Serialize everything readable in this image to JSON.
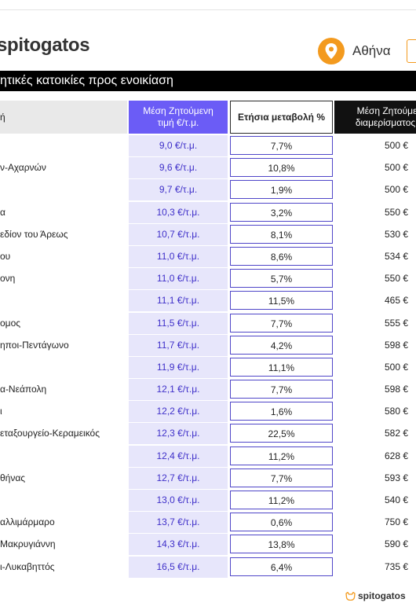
{
  "header": {
    "logo_text": "spitogatos",
    "location": "Αθήνα",
    "banner": "ητικές κατοικίες προς ενοικίαση"
  },
  "table": {
    "col_area": "ή",
    "col_price": "Μέση Ζητούμενη τιμή €/τ.μ.",
    "col_change": "Ετήσια μεταβολή %",
    "col_apartment": "Μέση Ζητούμεν διαμερίσματος «"
  },
  "rows": [
    {
      "area": "",
      "price": "9,0 €/τ.μ.",
      "change": "7,7%",
      "apt": "500 €"
    },
    {
      "area": "ν-Αχαρνών",
      "price": "9,6 €/τ.μ.",
      "change": "10,8%",
      "apt": "500 €"
    },
    {
      "area": "",
      "price": "9,7 €/τ.μ.",
      "change": "1,9%",
      "apt": "500 €"
    },
    {
      "area": "α",
      "price": "10,3 €/τ.μ.",
      "change": "3,2%",
      "apt": "550 €"
    },
    {
      "area": "εδίον του Άρεως",
      "price": "10,7 €/τ.μ.",
      "change": "8,1%",
      "apt": "530 €"
    },
    {
      "area": "ου",
      "price": "11,0 €/τ.μ.",
      "change": "8,6%",
      "apt": "534 €"
    },
    {
      "area": "ονη",
      "price": "11,0 €/τ.μ.",
      "change": "5,7%",
      "apt": "550 €"
    },
    {
      "area": "",
      "price": "11,1 €/τ.μ.",
      "change": "11,5%",
      "apt": "465 €"
    },
    {
      "area": "ομος",
      "price": "11,5 €/τ.μ.",
      "change": "7,7%",
      "apt": "555 €"
    },
    {
      "area": "ηποι-Πεντάγωνο",
      "price": "11,7 €/τ.μ.",
      "change": "4,2%",
      "apt": "598 €"
    },
    {
      "area": "",
      "price": "11,9 €/τ.μ.",
      "change": "11,1%",
      "apt": "500 €"
    },
    {
      "area": "α-Νεάπολη",
      "price": "12,1 €/τ.μ.",
      "change": "7,7%",
      "apt": "598 €"
    },
    {
      "area": "ι",
      "price": "12,2 €/τ.μ.",
      "change": "1,6%",
      "apt": "580 €"
    },
    {
      "area": "εταξουργείο-Κεραμεικός",
      "price": "12,3 €/τ.μ.",
      "change": "22,5%",
      "apt": "582 €"
    },
    {
      "area": "",
      "price": "12,4 €/τ.μ.",
      "change": "11,2%",
      "apt": "628 €"
    },
    {
      "area": "θήνας",
      "price": "12,7 €/τ.μ.",
      "change": "7,7%",
      "apt": "593 €"
    },
    {
      "area": "",
      "price": "13,0 €/τ.μ.",
      "change": "11,2%",
      "apt": "540 €"
    },
    {
      "area": "αλλιμάρμαρο",
      "price": "13,7 €/τ.μ.",
      "change": "0,6%",
      "apt": "750 €"
    },
    {
      "area": "Μακρυγιάννη",
      "price": "14,3 €/τ.μ.",
      "change": "13,8%",
      "apt": "590 €"
    },
    {
      "area": "ι-Λυκαβηττός",
      "price": "16,5 €/τ.μ.",
      "change": "6,4%",
      "apt": "735 €"
    }
  ],
  "footer": {
    "logo_text": "spitogatos"
  },
  "colors": {
    "accent": "#f39a1e",
    "price_header": "#6b5cf6",
    "price_cell": "#e7e6fb",
    "price_text": "#3f30c9"
  },
  "icons": {
    "location": "location-pin-icon",
    "footer": "cat-logo-icon"
  }
}
